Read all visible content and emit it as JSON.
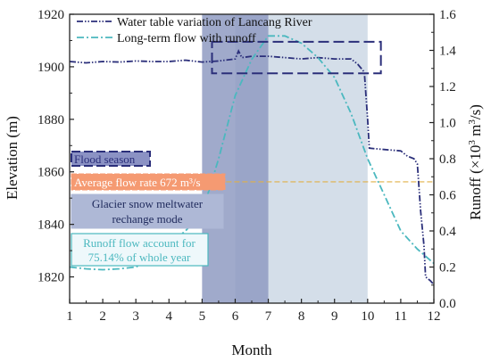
{
  "chart_data": {
    "type": "line",
    "xlabel": "Month",
    "ylabel_left": "Elevation (m)",
    "ylabel_right": "Runoff (×10³ m³/s)",
    "ylabel_right_parts": {
      "prefix": "Runoff (×10",
      "exp1": "3",
      "mid": " m",
      "exp2": "3",
      "suffix": "/s)"
    },
    "xlim": [
      1,
      12
    ],
    "ylim_left": [
      1810,
      1920
    ],
    "ylim_right": [
      0.0,
      1.6
    ],
    "xticks": [
      "1",
      "2",
      "3",
      "4",
      "5",
      "6",
      "7",
      "8",
      "9",
      "10",
      "11",
      "12"
    ],
    "yticks_left": [
      "1820",
      "1840",
      "1860",
      "1880",
      "1900",
      "1920"
    ],
    "yticks_right": [
      "0.0",
      "0.2",
      "0.4",
      "0.6",
      "0.8",
      "1.0",
      "1.2",
      "1.4",
      "1.6"
    ],
    "legend_position": "top",
    "series": [
      {
        "name": "Water table variation of Lancang River",
        "axis": "left",
        "color": "#2b2f7a",
        "style": "dash-dot-dot",
        "points": [
          [
            1.0,
            1902
          ],
          [
            1.5,
            1901.5
          ],
          [
            2.0,
            1902
          ],
          [
            2.5,
            1901.8
          ],
          [
            3.0,
            1902.2
          ],
          [
            3.5,
            1902
          ],
          [
            4.0,
            1902
          ],
          [
            4.5,
            1902.5
          ],
          [
            5.0,
            1901.8
          ],
          [
            5.5,
            1902.2
          ],
          [
            6.0,
            1903
          ],
          [
            6.1,
            1906
          ],
          [
            6.2,
            1903.5
          ],
          [
            6.5,
            1904
          ],
          [
            7.0,
            1904
          ],
          [
            7.5,
            1903.5
          ],
          [
            8.0,
            1903
          ],
          [
            8.5,
            1903.5
          ],
          [
            9.0,
            1903
          ],
          [
            9.5,
            1903
          ],
          [
            9.7,
            1901
          ],
          [
            9.9,
            1898
          ],
          [
            10.0,
            1880
          ],
          [
            10.05,
            1869
          ],
          [
            10.5,
            1868.5
          ],
          [
            11.0,
            1868
          ],
          [
            11.2,
            1866
          ],
          [
            11.4,
            1865
          ],
          [
            11.5,
            1863
          ],
          [
            11.6,
            1845
          ],
          [
            11.7,
            1832
          ],
          [
            11.75,
            1820
          ],
          [
            11.9,
            1818.5
          ],
          [
            12.0,
            1817
          ]
        ]
      },
      {
        "name": "Long-term flow with runoff",
        "axis": "right",
        "color": "#4bb8bf",
        "style": "dash-dot",
        "points": [
          [
            1.0,
            0.2
          ],
          [
            1.5,
            0.19
          ],
          [
            2.0,
            0.185
          ],
          [
            2.5,
            0.19
          ],
          [
            3.0,
            0.2
          ],
          [
            3.5,
            0.25
          ],
          [
            4.0,
            0.33
          ],
          [
            4.5,
            0.4
          ],
          [
            5.0,
            0.5
          ],
          [
            5.5,
            0.8
          ],
          [
            6.0,
            1.15
          ],
          [
            6.5,
            1.35
          ],
          [
            7.0,
            1.48
          ],
          [
            7.5,
            1.48
          ],
          [
            8.0,
            1.44
          ],
          [
            8.5,
            1.36
          ],
          [
            9.0,
            1.25
          ],
          [
            9.5,
            1.05
          ],
          [
            10.0,
            0.8
          ],
          [
            10.5,
            0.6
          ],
          [
            11.0,
            0.4
          ],
          [
            11.5,
            0.3
          ],
          [
            12.0,
            0.22
          ]
        ]
      }
    ],
    "bands": [
      {
        "x_start": 5.0,
        "x_end": 7.0,
        "color": "#8f9bc2"
      },
      {
        "x_start": 6.0,
        "x_end": 10.0,
        "color": "#c9d6e3"
      }
    ],
    "reference_line": {
      "axis": "right",
      "y": 0.672,
      "x_start": 5.0,
      "x_end": 12.0,
      "color": "#e0b048"
    },
    "highlight_box": {
      "x_start": 5.3,
      "x_end": 10.4,
      "y_start": 1897.5,
      "y_end": 1909.5,
      "color": "#2b2f7a"
    },
    "annotations": [
      {
        "id": "flood",
        "text": "Flood season",
        "text_color": "#2b2f7a",
        "fill": "#8b92c4",
        "stroke": "#2b2f7a"
      },
      {
        "id": "avg",
        "text": "Average flow rate 672 m³/s",
        "text_color": "#ffffff",
        "fill": "#f59a72",
        "stroke": "#f59a72"
      },
      {
        "id": "glacier",
        "line1": "Glacier snow meltwater",
        "line2": "rechange mode",
        "text_color": "#1f2a5c",
        "fill": "#aeb8d6",
        "stroke": "#aeb8d6"
      },
      {
        "id": "runoff",
        "line1": "Runoff flow account for",
        "line2": "75.14% of whole year",
        "text_color": "#4bb8bf",
        "fill": "#eef8fb",
        "stroke": "#4bb8bf"
      }
    ]
  }
}
